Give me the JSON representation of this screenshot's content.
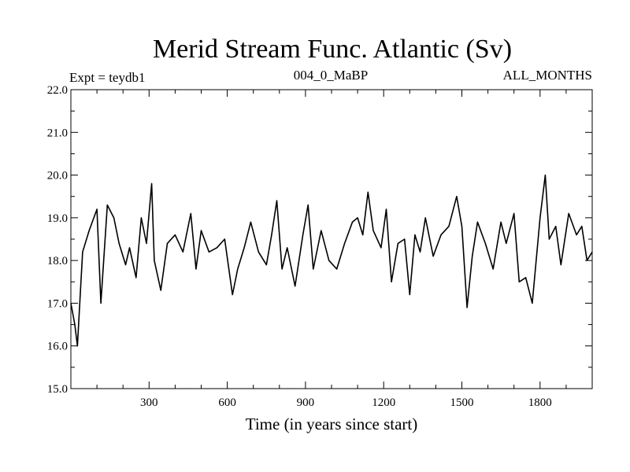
{
  "chart_data": {
    "type": "line",
    "title": "Merid Stream Func. Atlantic (Sv)",
    "subtitle_left": "Expt = teydb1",
    "subtitle_center": "004_0_MaBP",
    "subtitle_right": "ALL_MONTHS",
    "xlabel": "Time (in years since start)",
    "ylabel": "",
    "xlim": [
      0,
      2000
    ],
    "ylim": [
      15.0,
      22.0
    ],
    "x_ticks": [
      300,
      600,
      900,
      1200,
      1500,
      1800
    ],
    "x_tick_labels": [
      "300",
      "600",
      "900",
      "1200",
      "1500",
      "1800"
    ],
    "y_ticks": [
      15.0,
      16.0,
      17.0,
      18.0,
      19.0,
      20.0,
      21.0,
      22.0
    ],
    "y_tick_labels": [
      "15.0",
      "16.0",
      "17.0",
      "18.0",
      "19.0",
      "20.0",
      "21.0",
      "22.0"
    ],
    "grid": false,
    "line_color": "#000000",
    "series": [
      {
        "x": [
          0,
          15,
          25,
          45,
          70,
          100,
          115,
          140,
          165,
          185,
          210,
          225,
          250,
          270,
          290,
          310,
          320,
          345,
          370,
          400,
          430,
          460,
          480,
          500,
          530,
          560,
          590,
          620,
          640,
          665,
          690,
          720,
          750,
          770,
          790,
          810,
          830,
          860,
          890,
          910,
          930,
          960,
          990,
          1020,
          1050,
          1080,
          1100,
          1120,
          1140,
          1160,
          1190,
          1210,
          1230,
          1255,
          1280,
          1300,
          1320,
          1340,
          1360,
          1390,
          1420,
          1450,
          1480,
          1500,
          1520,
          1540,
          1560,
          1590,
          1620,
          1650,
          1670,
          1700,
          1720,
          1745,
          1770,
          1800,
          1820,
          1835,
          1860,
          1880,
          1910,
          1940,
          1960,
          1980,
          2000
        ],
        "y": [
          17.0,
          16.5,
          16.0,
          18.2,
          18.7,
          19.2,
          17.0,
          19.3,
          19.0,
          18.4,
          17.9,
          18.3,
          17.6,
          19.0,
          18.4,
          19.8,
          18.0,
          17.3,
          18.4,
          18.6,
          18.2,
          19.1,
          17.8,
          18.7,
          18.2,
          18.3,
          18.5,
          17.2,
          17.8,
          18.3,
          18.9,
          18.2,
          17.9,
          18.6,
          19.4,
          17.8,
          18.3,
          17.4,
          18.6,
          19.3,
          17.8,
          18.7,
          18.0,
          17.8,
          18.4,
          18.9,
          19.0,
          18.6,
          19.6,
          18.7,
          18.3,
          19.2,
          17.5,
          18.4,
          18.5,
          17.2,
          18.6,
          18.2,
          19.0,
          18.1,
          18.6,
          18.8,
          19.5,
          18.8,
          16.9,
          18.1,
          18.9,
          18.4,
          17.8,
          18.9,
          18.4,
          19.1,
          17.5,
          17.6,
          17.0,
          19.0,
          20.0,
          18.5,
          18.8,
          17.9,
          19.1,
          18.6,
          18.8,
          18.0,
          18.2
        ]
      }
    ]
  }
}
